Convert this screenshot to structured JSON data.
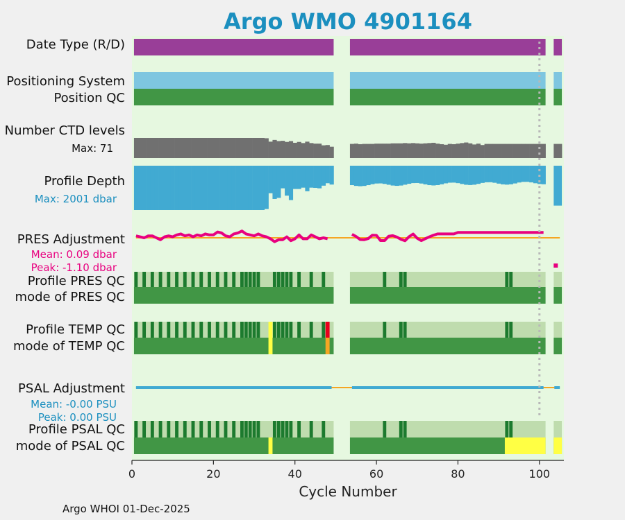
{
  "chart_data": {
    "type": "bar",
    "title": "Argo WMO 4901164",
    "xlabel": "Cycle Number",
    "xlim": [
      0,
      106
    ],
    "xticks": [
      0,
      20,
      40,
      60,
      80,
      100
    ],
    "footer": "Argo WHOI 01-Dec-2025",
    "vline_cycle": 100,
    "cycle_ranges": [
      [
        1,
        49
      ],
      [
        54,
        101
      ],
      [
        104,
        105
      ]
    ],
    "colors": {
      "background": "#e6f8e0",
      "date_type": "#993e98",
      "positioning": "#7ec6e0",
      "qc_good": "#419645",
      "qc_dark": "#1c7a2e",
      "qc_light": "#bfdcae",
      "ctd": "#707070",
      "depth": "#41aad2",
      "pres_adj": "#e8007f",
      "zero_line": "#f5a623",
      "psal_adj": "#41aad2",
      "qc_yellow": "#ffff44",
      "qc_orange": "#f5a623",
      "qc_red": "#e8001c",
      "vline": "#b8b8b8"
    },
    "rows": {
      "date_type": "Date Type (R/D)",
      "positioning_system": "Positioning System",
      "position_qc": "Position QC",
      "n_ctd_levels": "Number CTD levels",
      "n_ctd_max": "Max: 71",
      "profile_depth": "Profile Depth",
      "depth_max": "Max: 2001 dbar",
      "pres_adjustment": "PRES Adjustment",
      "pres_mean": "Mean: 0.09 dbar",
      "pres_peak": "Peak: -1.10 dbar",
      "profile_pres_qc": "Profile PRES QC",
      "mode_pres_qc": "mode of PRES QC",
      "profile_temp_qc": "Profile TEMP QC",
      "mode_temp_qc": "mode of TEMP QC",
      "psal_adjustment": "PSAL Adjustment",
      "psal_mean": "Mean: -0.00 PSU",
      "psal_peak": "Peak: 0.00 PSU",
      "profile_psal_qc": "Profile PSAL QC",
      "mode_psal_qc": "mode of PSAL QC"
    },
    "ctd_levels_approx": [
      71,
      71,
      71,
      71,
      71,
      71,
      71,
      71,
      71,
      71,
      71,
      71,
      71,
      71,
      71,
      71,
      71,
      71,
      71,
      71,
      71,
      71,
      71,
      71,
      71,
      71,
      71,
      71,
      71,
      71,
      71,
      71,
      70,
      58,
      64,
      60,
      61,
      57,
      60,
      54,
      57,
      53,
      58,
      53,
      51,
      51,
      45,
      46,
      40,
      50,
      51,
      49,
      50,
      50,
      50,
      51,
      51,
      51,
      51,
      52,
      52,
      52,
      53,
      52,
      53,
      52,
      51,
      52,
      53,
      54,
      51,
      49,
      47,
      50,
      49,
      51,
      53,
      55,
      52,
      48,
      51,
      46
    ],
    "profile_depth_dbar_approx": [
      2001,
      2001,
      2001,
      2001,
      2001,
      2001,
      2001,
      2001,
      2001,
      2001,
      2001,
      2001,
      2001,
      2001,
      2001,
      2001,
      2001,
      2001,
      2001,
      2001,
      2001,
      2001,
      2001,
      2001,
      2001,
      2001,
      2001,
      2001,
      2001,
      2001,
      2001,
      2001,
      1950,
      1240,
      1500,
      1450,
      1020,
      1350,
      1550,
      1050,
      1050,
      990,
      1150,
      990,
      1000,
      1020,
      900,
      790,
      850,
      800,
      760,
      700
    ],
    "pres_adjustment_dbar_approx": [
      0.2,
      0.1,
      0.0,
      0.2,
      0.2,
      0.0,
      -0.2,
      0.1,
      0.2,
      0.1,
      0.3,
      0.4,
      0.2,
      0.3,
      0.1,
      0.3,
      0.2,
      0.4,
      0.3,
      0.3,
      0.6,
      0.5,
      0.2,
      0.1,
      0.4,
      0.5,
      0.7,
      0.4,
      0.3,
      0.2,
      0.4,
      0.2,
      0.1,
      -0.1,
      -0.4,
      -0.2,
      -0.2,
      0.1,
      -0.3,
      -0.1,
      0.3,
      -0.1,
      -0.1,
      0.3,
      0.1,
      -0.1,
      0.0,
      -0.1
    ],
    "profile_pres_qc_pattern": "alternating dark/light green cycles 1-25, mostly light with dark marks at ~28, 30, 36, 39, 45, 48, 62, 65, 68, 92",
    "mode_pres_qc": "good (1) for all cycles",
    "temp_qc_flags": [
      {
        "cycle": 34,
        "flag": "yellow"
      },
      {
        "cycle": 48,
        "flag": "red"
      },
      {
        "cycle": 48,
        "flag": "orange"
      }
    ],
    "psal_qc_flags": [
      {
        "cycle": 34,
        "flag": "yellow"
      },
      {
        "range": [
          92,
          101
        ],
        "flag": "yellow"
      },
      {
        "range": [
          104,
          105
        ],
        "flag": "yellow"
      }
    ]
  }
}
